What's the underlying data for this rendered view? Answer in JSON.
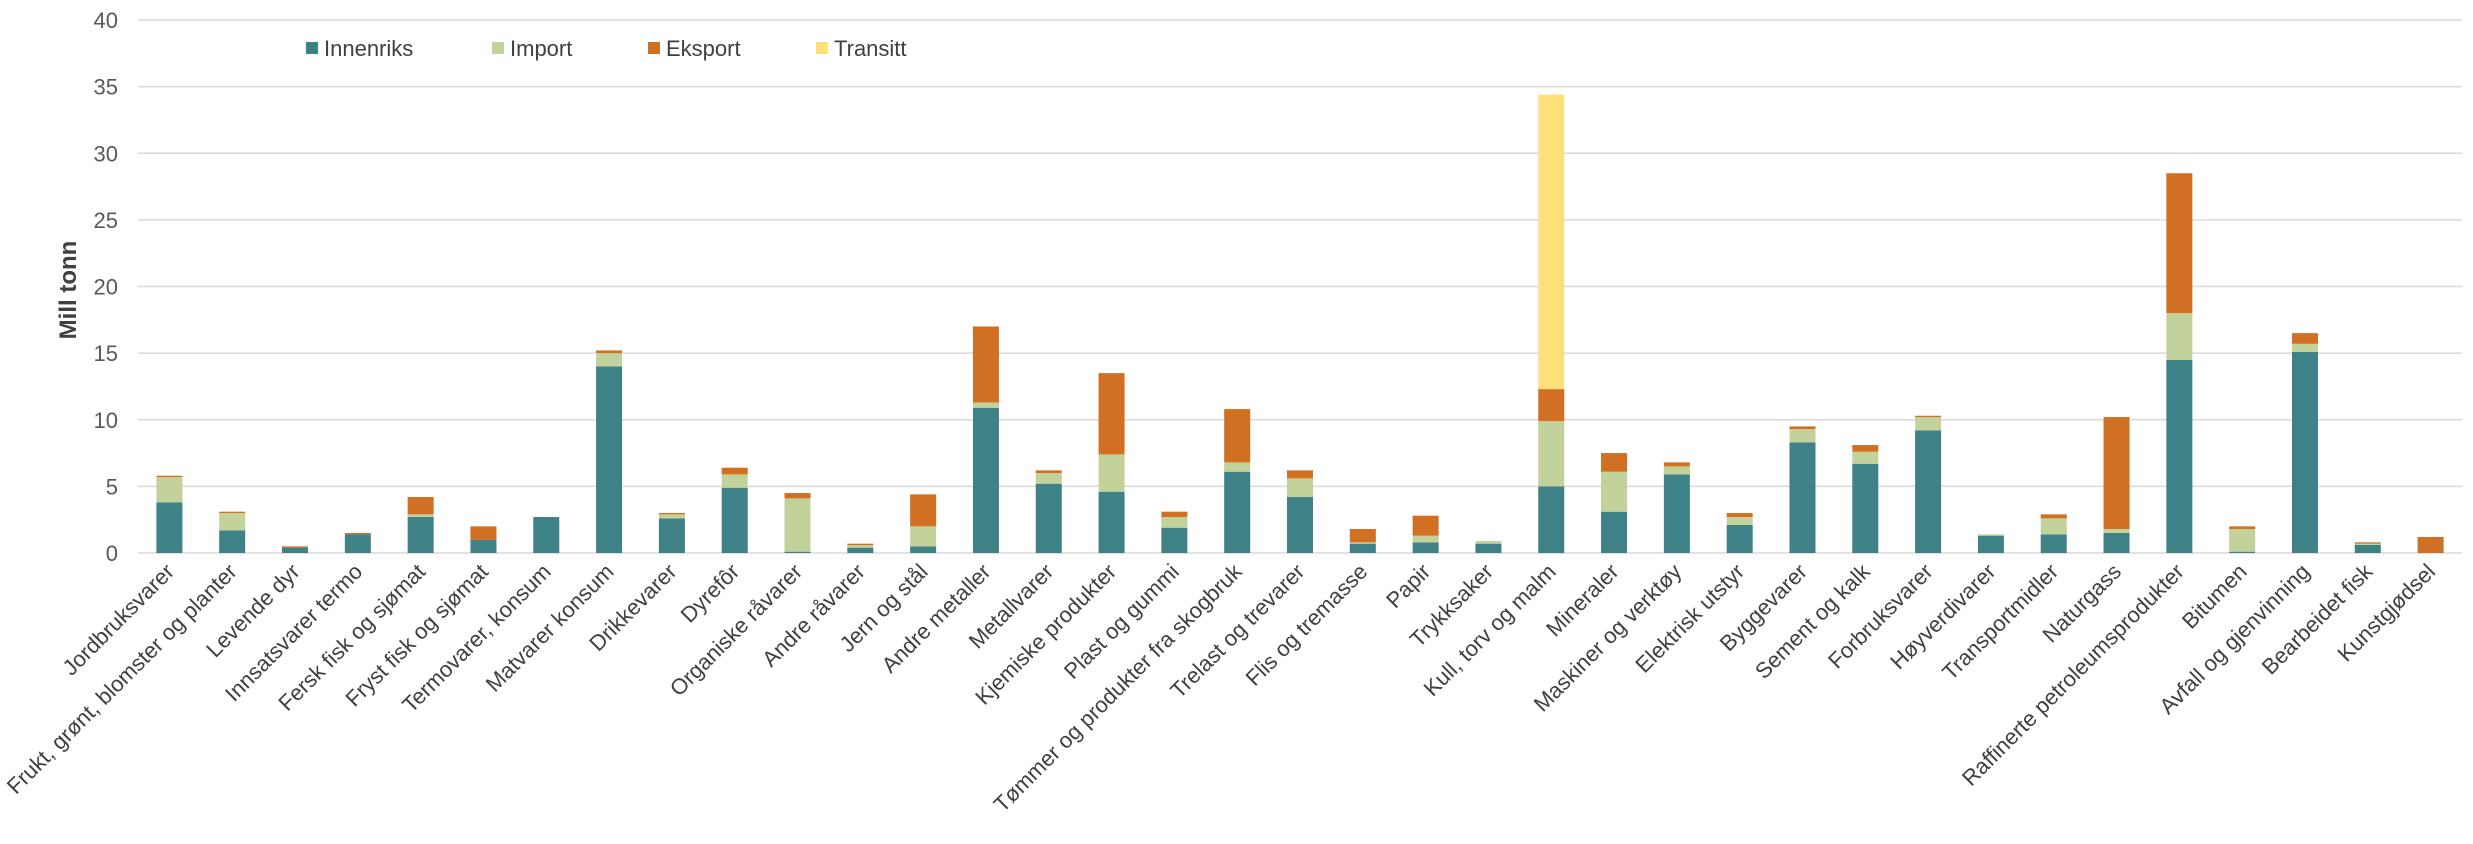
{
  "chart_data": {
    "type": "bar",
    "stacked": true,
    "ylabel": "Mill tonn",
    "ylim": [
      0,
      40
    ],
    "yticks": [
      0,
      5,
      10,
      15,
      20,
      25,
      30,
      35,
      40
    ],
    "grid": true,
    "legend_position": "top-left",
    "categories": [
      "Jordbruksvarer",
      "Frukt, grønt, blomster og planter",
      "Levende dyr",
      "Innsatsvarer termo",
      "Fersk fisk og sjømat",
      "Fryst fisk og sjømat",
      "Termovarer, konsum",
      "Matvarer konsum",
      "Drikkevarer",
      "Dyrefôr",
      "Organiske råvarer",
      "Andre råvarer",
      "Jern og stål",
      "Andre metaller",
      "Metallvarer",
      "Kjemiske produkter",
      "Plast og gummi",
      "Tømmer og produkter fra skogbruk",
      "Trelast og trevarer",
      "Flis og tremasse",
      "Papir",
      "Trykksaker",
      "Kull, torv og malm",
      "Mineraler",
      "Maskiner og verktøy",
      "Elektrisk utstyr",
      "Byggevarer",
      "Sement og kalk",
      "Forbruksvarer",
      "Høyverdivarer",
      "Transportmidler",
      "Naturgass",
      "Raffinerte petroleumsprodukter",
      "Bitumen",
      "Avfall og gjenvinning",
      "Bearbeidet fisk",
      "Kunstgjødsel"
    ],
    "series": [
      {
        "name": "Innenriks",
        "color": "#3e8186",
        "values": [
          3.8,
          1.7,
          0.4,
          1.4,
          2.7,
          1.0,
          2.7,
          14.0,
          2.6,
          4.9,
          0.1,
          0.4,
          0.5,
          10.9,
          5.2,
          4.6,
          1.9,
          6.1,
          4.2,
          0.7,
          0.8,
          0.7,
          5.0,
          3.1,
          5.9,
          2.1,
          8.3,
          6.7,
          9.2,
          1.3,
          1.4,
          1.5,
          14.5,
          0.1,
          15.1,
          0.6,
          0.0
        ]
      },
      {
        "name": "Import",
        "color": "#c3d19b",
        "values": [
          1.9,
          1.3,
          0.0,
          0.0,
          0.2,
          0.0,
          0.0,
          1.0,
          0.3,
          1.0,
          4.0,
          0.2,
          1.5,
          0.4,
          0.8,
          2.8,
          0.8,
          0.7,
          1.4,
          0.1,
          0.5,
          0.2,
          4.9,
          3.0,
          0.6,
          0.6,
          1.0,
          0.9,
          1.0,
          0.1,
          1.2,
          0.3,
          3.5,
          1.7,
          0.6,
          0.1,
          0.0
        ]
      },
      {
        "name": "Eksport",
        "color": "#d16f22",
        "values": [
          0.1,
          0.1,
          0.1,
          0.1,
          1.3,
          1.0,
          0.0,
          0.2,
          0.1,
          0.5,
          0.4,
          0.1,
          2.4,
          5.7,
          0.2,
          6.1,
          0.4,
          4.0,
          0.6,
          1.0,
          1.5,
          0.0,
          2.4,
          1.4,
          0.3,
          0.3,
          0.2,
          0.5,
          0.1,
          0.0,
          0.3,
          8.4,
          10.5,
          0.2,
          0.8,
          0.1,
          1.2
        ]
      },
      {
        "name": "Transitt",
        "color": "#ffe07a",
        "values": [
          0,
          0,
          0,
          0,
          0,
          0,
          0,
          0,
          0,
          0,
          0,
          0,
          0,
          0,
          0,
          0,
          0,
          0,
          0,
          0,
          0,
          0,
          22.1,
          0,
          0,
          0,
          0,
          0,
          0,
          0,
          0,
          0,
          0,
          0,
          0,
          0,
          0
        ]
      }
    ]
  }
}
